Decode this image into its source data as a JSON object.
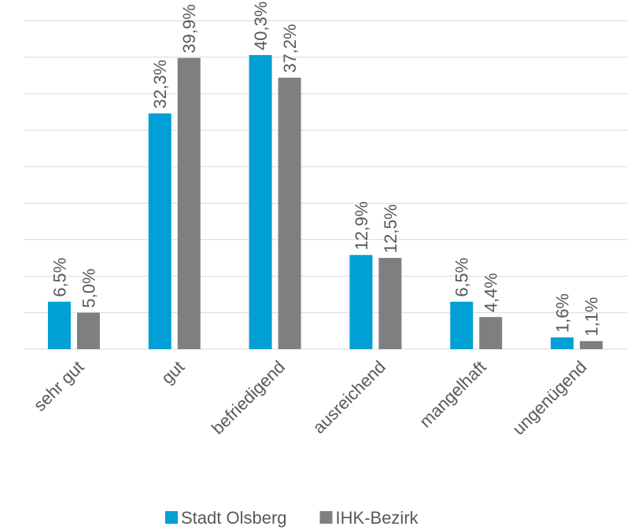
{
  "chart_data": {
    "type": "bar",
    "categories": [
      "sehr gut",
      "gut",
      "befriedigend",
      "ausreichend",
      "mangelhaft",
      "ungenügend"
    ],
    "series": [
      {
        "name": "Stadt Olsberg",
        "color": "#009fd4",
        "values": [
          6.5,
          32.3,
          40.3,
          12.9,
          6.5,
          1.6
        ],
        "value_labels": [
          "6,5%",
          "32,3%",
          "40,3%",
          "12,9%",
          "6,5%",
          "1,6%"
        ]
      },
      {
        "name": "IHK-Bezirk",
        "color": "#7f7f7f",
        "values": [
          5.0,
          39.9,
          37.2,
          12.5,
          4.4,
          1.1
        ],
        "value_labels": [
          "5,0%",
          "39,9%",
          "37,2%",
          "12,5%",
          "4,4%",
          "1,1%"
        ]
      }
    ],
    "ylim": [
      0,
      45
    ],
    "yticks": [
      0,
      5,
      10,
      15,
      20,
      25,
      30,
      35,
      40,
      45
    ],
    "grid": true,
    "legend": "bottom"
  }
}
